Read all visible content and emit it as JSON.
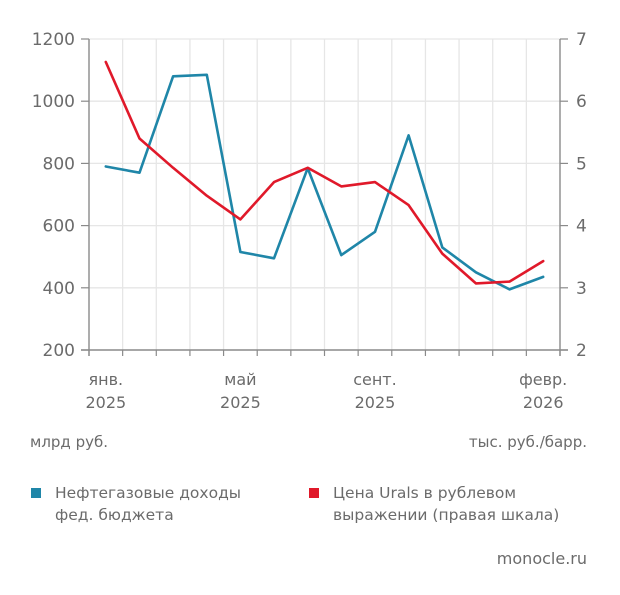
{
  "chart_data": {
    "type": "line",
    "title": "",
    "x_labels_shown": [
      {
        "index": 0,
        "line1": "янв.",
        "line2": "2025"
      },
      {
        "index": 4,
        "line1": "май",
        "line2": "2025"
      },
      {
        "index": 8,
        "line1": "сент.",
        "line2": "2025"
      },
      {
        "index": 13,
        "line1": "февр.",
        "line2": "2026"
      }
    ],
    "x": [
      "2025-01",
      "2025-02",
      "2025-03",
      "2025-04",
      "2025-05",
      "2025-06",
      "2025-07",
      "2025-08",
      "2025-09",
      "2025-10",
      "2025-11",
      "2025-12",
      "2026-01",
      "2026-02"
    ],
    "left_axis": {
      "label": "млрд руб.",
      "ticks": [
        200,
        400,
        600,
        800,
        1000,
        1200
      ],
      "range": [
        200,
        1200
      ]
    },
    "right_axis": {
      "label": "тыс. руб./барр.",
      "ticks": [
        2,
        3,
        4,
        5,
        6,
        7
      ],
      "range": [
        2,
        7
      ]
    },
    "grid": true,
    "legend_position": "bottom",
    "series": [
      {
        "name": "Нефтегазовые доходы фед. бюджета",
        "axis": "left",
        "color": "#1f86a8",
        "values": [
          790,
          770,
          1080,
          1085,
          515,
          495,
          785,
          505,
          580,
          890,
          530,
          450,
          395,
          435
        ]
      },
      {
        "name": "Цена Urals в рублевом выражении (правая шкала)",
        "axis": "right",
        "color": "#e0192a",
        "values": [
          6.63,
          5.4,
          4.93,
          4.48,
          4.1,
          4.7,
          4.93,
          4.63,
          4.7,
          4.33,
          3.55,
          3.07,
          3.1,
          3.43
        ]
      }
    ]
  },
  "units": {
    "left": "млрд руб.",
    "right": "тыс. руб./барр."
  },
  "legend": [
    {
      "line1": "Нефтегазовые доходы",
      "line2": "фед. бюджета",
      "color": "#1f86a8"
    },
    {
      "line1": "Цена Urals в рублевом",
      "line2": "выражении (правая шкала)",
      "color": "#e0192a"
    }
  ],
  "credit": "monocle.ru"
}
